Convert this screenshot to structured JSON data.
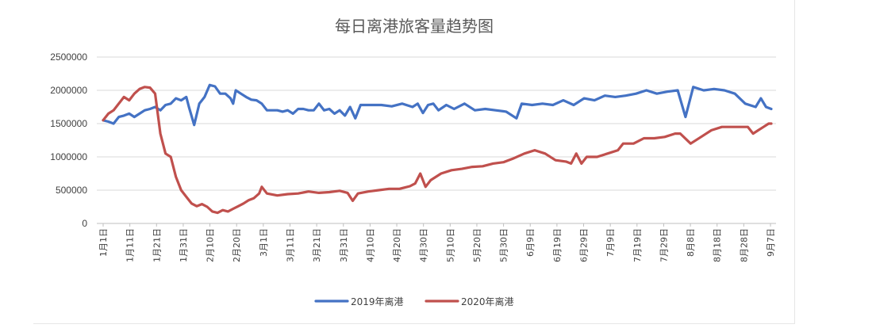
{
  "chart_data": {
    "type": "line",
    "title": "每日离港旅客量趋势图",
    "xlabel": "",
    "ylabel": "",
    "ylim": [
      0,
      2500000
    ],
    "yticks": [
      "2500000",
      "2000000",
      "1500000",
      "1000000",
      "500000",
      "0"
    ],
    "y_tick_values": [
      2500000,
      2000000,
      1500000,
      1000000,
      500000,
      0
    ],
    "x_tick_labels": [
      "1月1日",
      "1月11日",
      "1月21日",
      "1月31日",
      "2月10日",
      "2月20日",
      "3月1日",
      "3月11日",
      "3月21日",
      "3月31日",
      "4月10日",
      "4月20日",
      "4月30日",
      "5月10日",
      "5月20日",
      "5月30日",
      "6月9日",
      "6月19日",
      "6月29日",
      "7月9日",
      "7月19日",
      "7月29日",
      "8月8日",
      "8月18日",
      "8月28日",
      "9月7日"
    ],
    "grid": true,
    "legend": "bottom",
    "series": [
      {
        "name": "2019年离港",
        "color": "#4472C4",
        "points": [
          [
            1,
            1550000
          ],
          [
            3,
            1530000
          ],
          [
            5,
            1500000
          ],
          [
            7,
            1600000
          ],
          [
            9,
            1620000
          ],
          [
            11,
            1650000
          ],
          [
            13,
            1600000
          ],
          [
            15,
            1650000
          ],
          [
            17,
            1700000
          ],
          [
            19,
            1720000
          ],
          [
            21,
            1750000
          ],
          [
            23,
            1700000
          ],
          [
            25,
            1780000
          ],
          [
            27,
            1800000
          ],
          [
            29,
            1880000
          ],
          [
            31,
            1850000
          ],
          [
            33,
            1900000
          ],
          [
            34,
            1750000
          ],
          [
            36,
            1480000
          ],
          [
            38,
            1800000
          ],
          [
            40,
            1900000
          ],
          [
            42,
            2080000
          ],
          [
            44,
            2060000
          ],
          [
            46,
            1950000
          ],
          [
            48,
            1950000
          ],
          [
            50,
            1880000
          ],
          [
            51,
            1800000
          ],
          [
            52,
            2000000
          ],
          [
            54,
            1950000
          ],
          [
            56,
            1900000
          ],
          [
            58,
            1860000
          ],
          [
            60,
            1850000
          ],
          [
            62,
            1800000
          ],
          [
            64,
            1700000
          ],
          [
            66,
            1700000
          ],
          [
            68,
            1700000
          ],
          [
            70,
            1680000
          ],
          [
            72,
            1700000
          ],
          [
            74,
            1650000
          ],
          [
            76,
            1720000
          ],
          [
            78,
            1720000
          ],
          [
            80,
            1700000
          ],
          [
            82,
            1700000
          ],
          [
            84,
            1800000
          ],
          [
            86,
            1700000
          ],
          [
            88,
            1720000
          ],
          [
            90,
            1650000
          ],
          [
            92,
            1700000
          ],
          [
            94,
            1620000
          ],
          [
            96,
            1750000
          ],
          [
            98,
            1580000
          ],
          [
            100,
            1780000
          ],
          [
            104,
            1780000
          ],
          [
            108,
            1780000
          ],
          [
            112,
            1760000
          ],
          [
            116,
            1800000
          ],
          [
            120,
            1750000
          ],
          [
            122,
            1800000
          ],
          [
            124,
            1660000
          ],
          [
            126,
            1780000
          ],
          [
            128,
            1800000
          ],
          [
            130,
            1700000
          ],
          [
            133,
            1780000
          ],
          [
            136,
            1720000
          ],
          [
            140,
            1800000
          ],
          [
            144,
            1700000
          ],
          [
            148,
            1720000
          ],
          [
            152,
            1700000
          ],
          [
            156,
            1680000
          ],
          [
            160,
            1580000
          ],
          [
            162,
            1800000
          ],
          [
            166,
            1780000
          ],
          [
            170,
            1800000
          ],
          [
            174,
            1780000
          ],
          [
            178,
            1850000
          ],
          [
            182,
            1780000
          ],
          [
            186,
            1880000
          ],
          [
            190,
            1850000
          ],
          [
            194,
            1920000
          ],
          [
            198,
            1900000
          ],
          [
            202,
            1920000
          ],
          [
            206,
            1950000
          ],
          [
            210,
            2000000
          ],
          [
            214,
            1950000
          ],
          [
            218,
            1980000
          ],
          [
            222,
            2000000
          ],
          [
            225,
            1600000
          ],
          [
            228,
            2050000
          ],
          [
            232,
            2000000
          ],
          [
            236,
            2020000
          ],
          [
            240,
            2000000
          ],
          [
            244,
            1950000
          ],
          [
            248,
            1800000
          ],
          [
            252,
            1750000
          ],
          [
            254,
            1880000
          ],
          [
            256,
            1750000
          ],
          [
            258,
            1720000
          ]
        ]
      },
      {
        "name": "2020年离港",
        "color": "#C0504D",
        "points": [
          [
            1,
            1550000
          ],
          [
            3,
            1650000
          ],
          [
            5,
            1700000
          ],
          [
            7,
            1800000
          ],
          [
            9,
            1900000
          ],
          [
            11,
            1850000
          ],
          [
            13,
            1950000
          ],
          [
            15,
            2020000
          ],
          [
            17,
            2050000
          ],
          [
            19,
            2040000
          ],
          [
            21,
            1950000
          ],
          [
            23,
            1350000
          ],
          [
            25,
            1050000
          ],
          [
            27,
            1000000
          ],
          [
            29,
            700000
          ],
          [
            31,
            500000
          ],
          [
            33,
            400000
          ],
          [
            35,
            300000
          ],
          [
            37,
            260000
          ],
          [
            39,
            290000
          ],
          [
            41,
            250000
          ],
          [
            43,
            180000
          ],
          [
            45,
            160000
          ],
          [
            47,
            200000
          ],
          [
            49,
            180000
          ],
          [
            51,
            220000
          ],
          [
            53,
            260000
          ],
          [
            55,
            300000
          ],
          [
            57,
            350000
          ],
          [
            59,
            380000
          ],
          [
            61,
            450000
          ],
          [
            62,
            550000
          ],
          [
            64,
            450000
          ],
          [
            68,
            420000
          ],
          [
            72,
            440000
          ],
          [
            76,
            450000
          ],
          [
            80,
            480000
          ],
          [
            84,
            460000
          ],
          [
            88,
            470000
          ],
          [
            92,
            490000
          ],
          [
            95,
            460000
          ],
          [
            97,
            340000
          ],
          [
            99,
            450000
          ],
          [
            103,
            480000
          ],
          [
            107,
            500000
          ],
          [
            111,
            520000
          ],
          [
            115,
            520000
          ],
          [
            119,
            560000
          ],
          [
            121,
            600000
          ],
          [
            123,
            750000
          ],
          [
            125,
            550000
          ],
          [
            127,
            650000
          ],
          [
            131,
            750000
          ],
          [
            135,
            800000
          ],
          [
            139,
            820000
          ],
          [
            143,
            850000
          ],
          [
            147,
            860000
          ],
          [
            151,
            900000
          ],
          [
            155,
            920000
          ],
          [
            159,
            980000
          ],
          [
            163,
            1050000
          ],
          [
            167,
            1100000
          ],
          [
            171,
            1050000
          ],
          [
            175,
            950000
          ],
          [
            179,
            930000
          ],
          [
            181,
            900000
          ],
          [
            183,
            1050000
          ],
          [
            185,
            900000
          ],
          [
            187,
            1000000
          ],
          [
            191,
            1000000
          ],
          [
            195,
            1050000
          ],
          [
            199,
            1100000
          ],
          [
            201,
            1200000
          ],
          [
            205,
            1200000
          ],
          [
            209,
            1280000
          ],
          [
            213,
            1280000
          ],
          [
            217,
            1300000
          ],
          [
            221,
            1350000
          ],
          [
            223,
            1350000
          ],
          [
            227,
            1200000
          ],
          [
            231,
            1300000
          ],
          [
            235,
            1400000
          ],
          [
            239,
            1450000
          ],
          [
            243,
            1450000
          ],
          [
            247,
            1450000
          ],
          [
            249,
            1450000
          ],
          [
            251,
            1350000
          ],
          [
            253,
            1400000
          ],
          [
            255,
            1450000
          ],
          [
            257,
            1500000
          ],
          [
            258,
            1500000
          ]
        ]
      }
    ]
  }
}
